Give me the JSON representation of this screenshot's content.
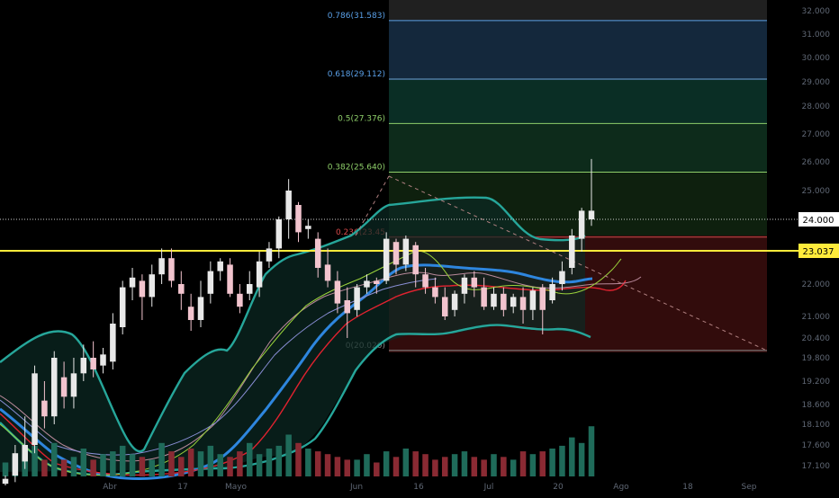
{
  "chart_data": {
    "type": "candlestick",
    "price_axis": {
      "ticks": [
        "32.000",
        "31.000",
        "30.000",
        "29.000",
        "28.000",
        "27.000",
        "26.000",
        "25.000",
        "24.000",
        "23.000",
        "22.000",
        "21.000",
        "20.400",
        "19.800",
        "19.200",
        "18.600",
        "18.100",
        "17.600",
        "17.100"
      ],
      "current_price_label": "24.000",
      "support_label": "23.037",
      "support_value": 23.037
    },
    "time_axis": {
      "labels": [
        "Abr",
        "17",
        "Mayo",
        "Jun",
        "16",
        "Jul",
        "20",
        "Ago",
        "18",
        "Sep"
      ]
    },
    "fibonacci": {
      "levels": [
        {
          "label": "0.786(31.583)",
          "value": 31.583
        },
        {
          "label": "0.618(29.112)",
          "value": 29.112
        },
        {
          "label": "0.5(27.376)",
          "value": 27.376
        },
        {
          "label": "0.382(25.640)",
          "value": 25.64
        },
        {
          "label": "0.236(23.45",
          "value": 23.45
        },
        {
          "label": "0(20.020)",
          "value": 20.02
        }
      ]
    },
    "candles": [
      {
        "o": 16.55,
        "c": 16.7,
        "h": 16.8,
        "l": 16.4,
        "up": true
      },
      {
        "o": 16.8,
        "c": 17.4,
        "h": 17.6,
        "l": 16.6,
        "up": true
      },
      {
        "o": 17.2,
        "c": 17.6,
        "h": 18.3,
        "l": 17.0,
        "up": true
      },
      {
        "o": 17.6,
        "c": 19.4,
        "h": 19.6,
        "l": 17.4,
        "up": true
      },
      {
        "o": 18.7,
        "c": 18.3,
        "h": 19.2,
        "l": 18.0,
        "up": false
      },
      {
        "o": 18.3,
        "c": 19.8,
        "h": 20.0,
        "l": 18.1,
        "up": true
      },
      {
        "o": 19.3,
        "c": 18.8,
        "h": 19.7,
        "l": 18.5,
        "up": false
      },
      {
        "o": 18.8,
        "c": 19.4,
        "h": 19.8,
        "l": 18.5,
        "up": true
      },
      {
        "o": 19.4,
        "c": 19.8,
        "h": 20.2,
        "l": 19.2,
        "up": true
      },
      {
        "o": 19.8,
        "c": 19.5,
        "h": 20.3,
        "l": 19.3,
        "up": false
      },
      {
        "o": 19.6,
        "c": 19.9,
        "h": 20.1,
        "l": 19.4,
        "up": true
      },
      {
        "o": 19.7,
        "c": 20.8,
        "h": 21.1,
        "l": 19.5,
        "up": true
      },
      {
        "o": 20.7,
        "c": 21.9,
        "h": 22.1,
        "l": 20.5,
        "up": true
      },
      {
        "o": 21.9,
        "c": 22.2,
        "h": 22.5,
        "l": 21.5,
        "up": true
      },
      {
        "o": 22.1,
        "c": 21.6,
        "h": 22.3,
        "l": 20.9,
        "up": false
      },
      {
        "o": 21.6,
        "c": 22.3,
        "h": 22.6,
        "l": 21.3,
        "up": true
      },
      {
        "o": 22.3,
        "c": 22.8,
        "h": 23.1,
        "l": 22.0,
        "up": true
      },
      {
        "o": 22.8,
        "c": 22.1,
        "h": 23.1,
        "l": 21.9,
        "up": false
      },
      {
        "o": 22.0,
        "c": 21.7,
        "h": 22.4,
        "l": 21.2,
        "up": false
      },
      {
        "o": 21.3,
        "c": 20.9,
        "h": 21.7,
        "l": 20.6,
        "up": false
      },
      {
        "o": 20.9,
        "c": 21.6,
        "h": 22.1,
        "l": 20.7,
        "up": true
      },
      {
        "o": 21.7,
        "c": 22.4,
        "h": 22.7,
        "l": 21.4,
        "up": true
      },
      {
        "o": 22.4,
        "c": 22.7,
        "h": 22.8,
        "l": 22.1,
        "up": true
      },
      {
        "o": 22.6,
        "c": 21.7,
        "h": 22.8,
        "l": 21.6,
        "up": false
      },
      {
        "o": 21.7,
        "c": 21.3,
        "h": 22.0,
        "l": 21.1,
        "up": false
      },
      {
        "o": 21.7,
        "c": 22.0,
        "h": 22.4,
        "l": 21.5,
        "up": true
      },
      {
        "o": 21.9,
        "c": 22.7,
        "h": 23.0,
        "l": 21.6,
        "up": true
      },
      {
        "o": 22.7,
        "c": 23.1,
        "h": 23.3,
        "l": 22.5,
        "up": true
      },
      {
        "o": 23.1,
        "c": 24.0,
        "h": 24.1,
        "l": 22.8,
        "up": true
      },
      {
        "o": 24.0,
        "c": 25.0,
        "h": 25.4,
        "l": 23.4,
        "up": true
      },
      {
        "o": 24.5,
        "c": 23.6,
        "h": 24.6,
        "l": 23.3,
        "up": false
      },
      {
        "o": 23.7,
        "c": 23.8,
        "h": 24.0,
        "l": 23.4,
        "up": true
      },
      {
        "o": 23.4,
        "c": 22.5,
        "h": 23.6,
        "l": 22.2,
        "up": false
      },
      {
        "o": 22.6,
        "c": 22.1,
        "h": 23.1,
        "l": 21.9,
        "up": false
      },
      {
        "o": 22.1,
        "c": 21.4,
        "h": 22.4,
        "l": 21.1,
        "up": false
      },
      {
        "o": 21.5,
        "c": 21.1,
        "h": 21.9,
        "l": 20.4,
        "up": false
      },
      {
        "o": 21.2,
        "c": 21.9,
        "h": 22.0,
        "l": 21.0,
        "up": true
      },
      {
        "o": 21.9,
        "c": 22.1,
        "h": 22.3,
        "l": 21.7,
        "up": true
      },
      {
        "o": 22.1,
        "c": 22.0,
        "h": 22.2,
        "l": 21.7,
        "up": false
      },
      {
        "o": 22.1,
        "c": 23.4,
        "h": 23.6,
        "l": 22.0,
        "up": true
      },
      {
        "o": 23.3,
        "c": 22.6,
        "h": 23.4,
        "l": 22.3,
        "up": false
      },
      {
        "o": 22.6,
        "c": 23.4,
        "h": 23.5,
        "l": 22.4,
        "up": true
      },
      {
        "o": 23.2,
        "c": 22.3,
        "h": 23.3,
        "l": 21.9,
        "up": false
      },
      {
        "o": 22.3,
        "c": 21.9,
        "h": 22.5,
        "l": 21.7,
        "up": false
      },
      {
        "o": 21.9,
        "c": 21.6,
        "h": 22.2,
        "l": 21.4,
        "up": false
      },
      {
        "o": 21.6,
        "c": 21.0,
        "h": 21.9,
        "l": 20.9,
        "up": false
      },
      {
        "o": 21.2,
        "c": 21.7,
        "h": 21.8,
        "l": 21.0,
        "up": true
      },
      {
        "o": 21.7,
        "c": 22.2,
        "h": 22.3,
        "l": 21.4,
        "up": true
      },
      {
        "o": 22.2,
        "c": 21.9,
        "h": 22.4,
        "l": 21.6,
        "up": false
      },
      {
        "o": 21.9,
        "c": 21.3,
        "h": 22.2,
        "l": 21.2,
        "up": false
      },
      {
        "o": 21.3,
        "c": 21.7,
        "h": 21.9,
        "l": 21.2,
        "up": true
      },
      {
        "o": 21.7,
        "c": 21.2,
        "h": 21.9,
        "l": 21.0,
        "up": false
      },
      {
        "o": 21.3,
        "c": 21.6,
        "h": 21.7,
        "l": 21.1,
        "up": true
      },
      {
        "o": 21.6,
        "c": 21.2,
        "h": 21.9,
        "l": 20.8,
        "up": false
      },
      {
        "o": 21.2,
        "c": 21.8,
        "h": 21.9,
        "l": 20.9,
        "up": true
      },
      {
        "o": 21.9,
        "c": 21.2,
        "h": 22.0,
        "l": 20.5,
        "up": false
      },
      {
        "o": 21.5,
        "c": 22.0,
        "h": 22.2,
        "l": 21.4,
        "up": true
      },
      {
        "o": 22.0,
        "c": 22.4,
        "h": 22.7,
        "l": 21.8,
        "up": true
      },
      {
        "o": 22.5,
        "c": 23.5,
        "h": 23.7,
        "l": 22.3,
        "up": true
      },
      {
        "o": 23.4,
        "c": 24.3,
        "h": 24.4,
        "l": 23.0,
        "up": true
      },
      {
        "o": 24.0,
        "c": 24.3,
        "h": 26.1,
        "l": 23.8,
        "up": true
      }
    ],
    "volume": [
      0.25,
      0.35,
      0.4,
      0.55,
      0.3,
      0.6,
      0.3,
      0.35,
      0.5,
      0.3,
      0.4,
      0.45,
      0.55,
      0.4,
      0.35,
      0.3,
      0.6,
      0.45,
      0.35,
      0.5,
      0.45,
      0.55,
      0.4,
      0.35,
      0.45,
      0.6,
      0.4,
      0.5,
      0.55,
      0.75,
      0.6,
      0.5,
      0.45,
      0.4,
      0.35,
      0.3,
      0.3,
      0.4,
      0.25,
      0.45,
      0.35,
      0.5,
      0.45,
      0.4,
      0.3,
      0.35,
      0.4,
      0.45,
      0.35,
      0.3,
      0.4,
      0.35,
      0.3,
      0.45,
      0.4,
      0.45,
      0.5,
      0.55,
      0.7,
      0.6,
      0.9
    ]
  },
  "colors": {
    "background": "#000000",
    "candle_up": "#e8e8e8",
    "candle_down": "#f2c4ce",
    "support_line": "#ffeb3b",
    "bollinger": "#26a69a",
    "ma_blue": "#2e86de",
    "ma_red": "#e0222f",
    "axis_text": "#5f6774"
  }
}
